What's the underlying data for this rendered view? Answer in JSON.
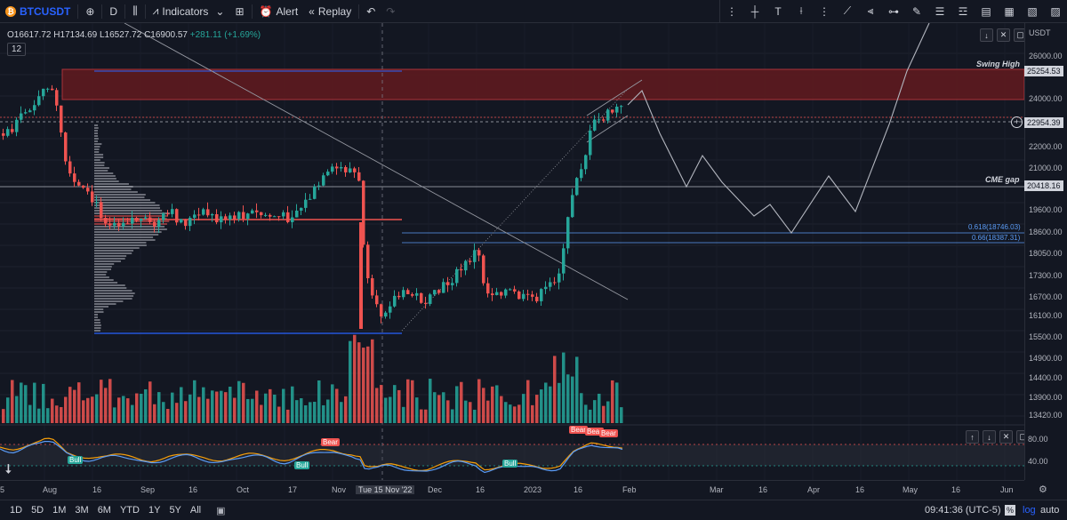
{
  "toolbar": {
    "symbol": "BTCUSDT",
    "interval": "D",
    "indicators_label": "Indicators",
    "alert_label": "Alert",
    "replay_label": "Replay"
  },
  "legend": {
    "open": "O16617.72",
    "high": "H17134.69",
    "low": "L16527.72",
    "close": "C16900.57",
    "change": "+281.11 (+1.69%)",
    "volume_badge": "12"
  },
  "price_axis": {
    "currency": "USDT",
    "ticks": [
      "26000.00",
      "25000.00",
      "24000.00",
      "23000.00",
      "22000.00",
      "21000.00",
      "20000.00",
      "19600.00",
      "18600.00",
      "18050.00",
      "17300.00",
      "16700.00",
      "16100.00",
      "15500.00",
      "14900.00",
      "14400.00",
      "13900.00",
      "13420.00"
    ],
    "tags": {
      "swing_high": "25254.53",
      "current": "22954.39",
      "cme": "20418.16"
    }
  },
  "osc_axis": {
    "ticks": [
      "80.00",
      "40.00"
    ]
  },
  "annotations": {
    "swing_high": "Swing High",
    "cme_gap": "CME gap",
    "fib_618": "0.618(18746.03)",
    "fib_66": "0.66(18387.31)"
  },
  "signals": {
    "bull": "Bull",
    "bear": "Bear"
  },
  "time_axis": {
    "labels": [
      "5",
      "Aug",
      "16",
      "Sep",
      "16",
      "Oct",
      "17",
      "Nov",
      "Tue 15 Nov '22",
      "Dec",
      "16",
      "2023",
      "16",
      "Feb",
      "Mar",
      "16",
      "Apr",
      "16",
      "May",
      "16",
      "Jun"
    ]
  },
  "bottombar": {
    "ranges": [
      "1D",
      "5D",
      "1M",
      "3M",
      "6M",
      "YTD",
      "1Y",
      "5Y",
      "All"
    ],
    "clock": "09:41:36 (UTC-5)",
    "pct": "%",
    "log": "log",
    "auto": "auto"
  },
  "colors": {
    "up": "#26a69a",
    "down": "#ef5350",
    "zone": "#5a1a1f",
    "blue": "#2962ff"
  }
}
